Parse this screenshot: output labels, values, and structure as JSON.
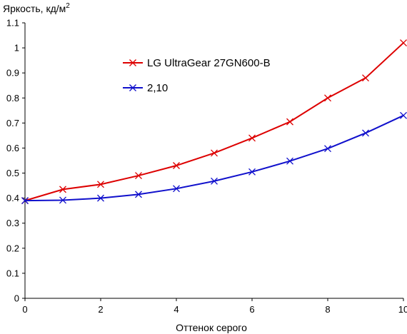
{
  "chart_data": {
    "type": "line",
    "ylabel_main": "Яркость, кд/м",
    "ylabel_sup": "2",
    "xlabel": "Оттенок серого",
    "xlim": [
      0,
      10
    ],
    "ylim": [
      0,
      1.1
    ],
    "x_ticks": [
      {
        "value": 0,
        "label": "0"
      },
      {
        "value": 2,
        "label": "2"
      },
      {
        "value": 4,
        "label": "4"
      },
      {
        "value": 6,
        "label": "6"
      },
      {
        "value": 8,
        "label": "8"
      },
      {
        "value": 10,
        "label": "10"
      }
    ],
    "y_ticks": [
      {
        "value": 0,
        "label": "0"
      },
      {
        "value": 0.1,
        "label": "0.1"
      },
      {
        "value": 0.2,
        "label": "0.2"
      },
      {
        "value": 0.3,
        "label": "0.3"
      },
      {
        "value": 0.4,
        "label": "0.4"
      },
      {
        "value": 0.5,
        "label": "0.5"
      },
      {
        "value": 0.6,
        "label": "0.6"
      },
      {
        "value": 0.7,
        "label": "0.7"
      },
      {
        "value": 0.8,
        "label": "0.8"
      },
      {
        "value": 0.9,
        "label": "0.9"
      },
      {
        "value": 1.0,
        "label": "1"
      },
      {
        "value": 1.1,
        "label": "1.1"
      }
    ],
    "grid": false,
    "legend_position": "top-center",
    "x": [
      0,
      1,
      2,
      3,
      4,
      5,
      6,
      7,
      8,
      9,
      10
    ],
    "series": [
      {
        "name": "LG UltraGear 27GN600-B",
        "color": "#dd0000",
        "marker": "x",
        "values": [
          0.39,
          0.435,
          0.455,
          0.49,
          0.53,
          0.58,
          0.64,
          0.705,
          0.8,
          0.88,
          1.02
        ]
      },
      {
        "name": "2,10",
        "color": "#1010cc",
        "marker": "x",
        "values": [
          0.39,
          0.392,
          0.4,
          0.415,
          0.438,
          0.468,
          0.505,
          0.548,
          0.598,
          0.66,
          0.73
        ]
      }
    ]
  }
}
